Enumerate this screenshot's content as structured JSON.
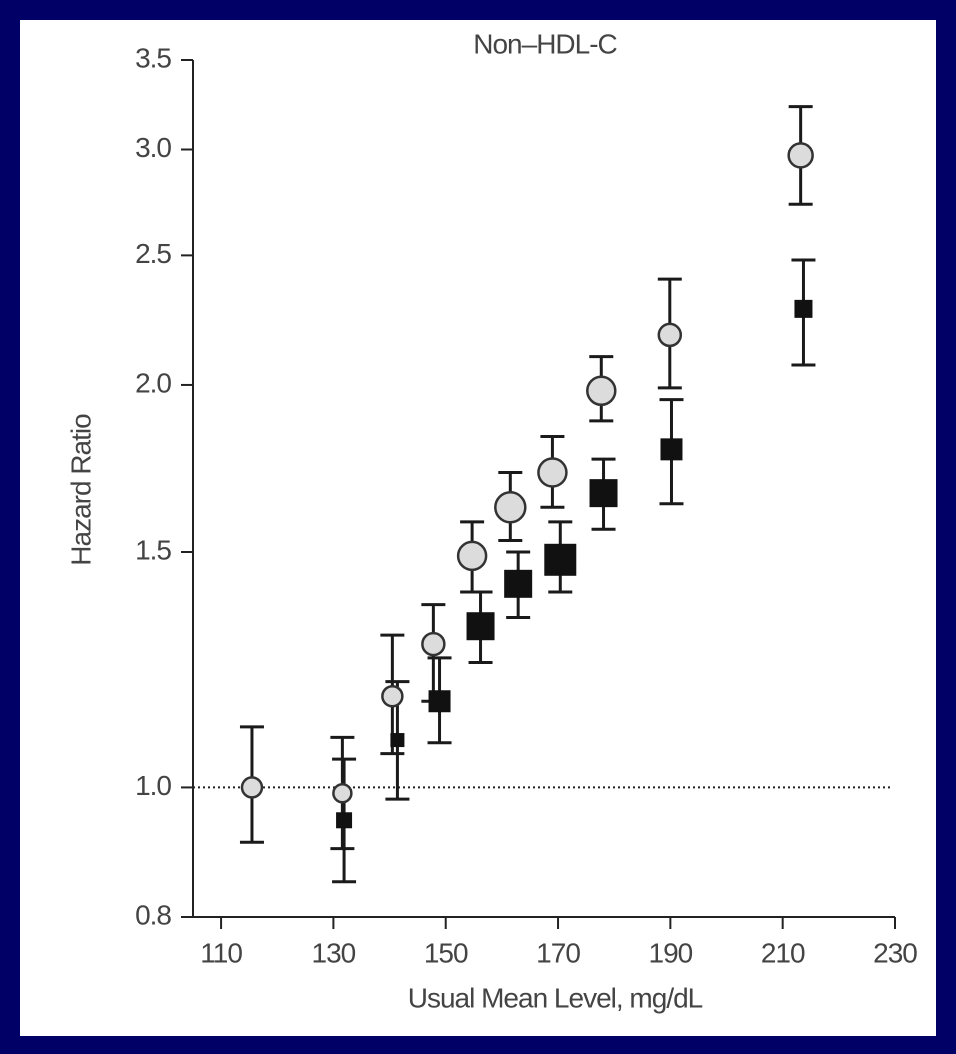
{
  "chart_data": {
    "type": "scatter",
    "title": "Non–HDL-C",
    "xlabel": "Usual Mean Level, mg/dL",
    "ylabel": "Hazard Ratio",
    "yscale": "log",
    "xlim": [
      105,
      230
    ],
    "ylim": [
      0.8,
      3.5
    ],
    "xticks": [
      110,
      130,
      150,
      170,
      190,
      210,
      230
    ],
    "yticks": [
      0.8,
      {
        "value": 1,
        "label": "1.0"
      },
      1.5,
      {
        "value": 2,
        "label": "2.0"
      },
      2.5,
      {
        "value": 3,
        "label": "3.0"
      },
      3.5
    ],
    "reference_line": 1,
    "series": [
      {
        "marker": "circle",
        "color": "#dcdcdc",
        "x": [
          115.5,
          131.6,
          140.5,
          147.8,
          154.7,
          161.5,
          169,
          177.7,
          189.9,
          213.2
        ],
        "values": [
          1.0,
          0.99,
          1.17,
          1.28,
          1.49,
          1.62,
          1.72,
          1.98,
          2.18,
          2.97
        ],
        "lower": [
          0.91,
          0.9,
          1.06,
          1.16,
          1.4,
          1.53,
          1.62,
          1.88,
          1.99,
          2.73
        ],
        "upper": [
          1.11,
          1.09,
          1.3,
          1.37,
          1.58,
          1.72,
          1.83,
          2.1,
          2.4,
          3.23
        ],
        "sizes": [
          10,
          9,
          10,
          11,
          14,
          15,
          14,
          14,
          11,
          12
        ]
      },
      {
        "marker": "square",
        "color": "#111111",
        "x": [
          131.9,
          141.4,
          148.9,
          156.2,
          162.9,
          170.4,
          178.1,
          190.2,
          213.7
        ],
        "values": [
          0.945,
          1.085,
          1.16,
          1.32,
          1.42,
          1.48,
          1.66,
          1.79,
          2.28
        ],
        "lower": [
          0.85,
          0.98,
          1.08,
          1.24,
          1.34,
          1.4,
          1.56,
          1.63,
          2.07
        ],
        "upper": [
          1.05,
          1.2,
          1.25,
          1.4,
          1.5,
          1.58,
          1.76,
          1.95,
          2.48
        ],
        "sizes": [
          8,
          7,
          11,
          14,
          14,
          16,
          14,
          11,
          9
        ]
      }
    ]
  }
}
